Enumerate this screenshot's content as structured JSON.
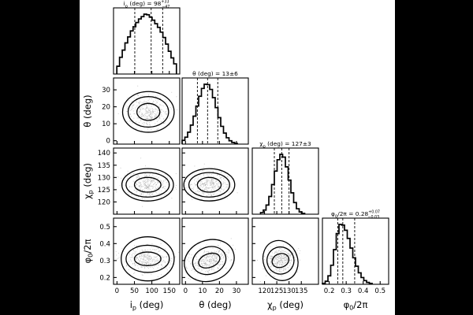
{
  "chart_data": {
    "type": "corner",
    "parameters": [
      {
        "key": "ip",
        "title": "i_p (deg) = 98 +33 −47",
        "title_parts": [
          "i",
          "p",
          " (deg) = 98",
          "+33",
          "−47"
        ],
        "xlabel_parts": [
          "i",
          "p",
          " (deg)"
        ],
        "ylabel_parts": [],
        "range": [
          -10,
          180
        ],
        "ticks": [
          0,
          50,
          100,
          150
        ],
        "median": 98,
        "lo": 51,
        "hi": 131,
        "hist_mode": "flat",
        "hist_values": [
          0.13,
          0.28,
          0.4,
          0.52,
          0.62,
          0.72,
          0.79,
          0.86,
          0.92,
          0.96,
          1.0,
          0.99,
          0.95,
          0.9,
          0.84,
          0.78,
          0.7,
          0.61,
          0.5,
          0.38,
          0.27,
          0.17
        ]
      },
      {
        "key": "theta",
        "title": "θ (deg) = 13±6",
        "title_parts": [
          "θ",
          "",
          " (deg) = 13±6",
          "",
          ""
        ],
        "xlabel_parts": [
          "θ",
          "",
          " (deg)"
        ],
        "ylabel_parts": [
          "θ",
          "",
          " (deg)"
        ],
        "range": [
          -2,
          37
        ],
        "ticks": [
          0,
          10,
          20,
          30
        ],
        "median": 13,
        "lo": 7,
        "hi": 19,
        "hist_mode": "gauss",
        "hist_mean": 12.5,
        "hist_sd": 5.8
      },
      {
        "key": "chip",
        "title": "χ_p (deg) = 127±3",
        "title_parts": [
          "χ",
          "p",
          " (deg) = 127±3",
          "",
          ""
        ],
        "xlabel_parts": [
          "χ",
          "p",
          " (deg)"
        ],
        "ylabel_parts": [
          "χ",
          "p",
          " (deg)"
        ],
        "range": [
          115,
          142
        ],
        "ticks": [
          120,
          125,
          130,
          135
        ],
        "yticks": [
          120,
          125,
          130,
          135,
          140
        ],
        "median": 127,
        "lo": 124,
        "hi": 130,
        "hist_mode": "gauss",
        "hist_mean": 127,
        "hist_sd": 3
      },
      {
        "key": "phi0",
        "title": "φ0/2π = 0.28 +0.07 −0.03",
        "title_parts": [
          "φ",
          "0",
          "/2π = 0.28",
          "+0.07",
          "−0.03"
        ],
        "xlabel_parts": [
          "φ",
          "0",
          "/2π"
        ],
        "ylabel_parts": [
          "φ",
          "0",
          "/2π"
        ],
        "range": [
          0.16,
          0.55
        ],
        "ticks": [
          0.2,
          0.3,
          0.4,
          0.5
        ],
        "median": 0.28,
        "lo": 0.25,
        "hi": 0.35,
        "hist_mode": "skew",
        "hist_mode_value": 0.27,
        "hist_sd_left": 0.035,
        "hist_sd_right": 0.06
      }
    ],
    "pairs": [
      {
        "x": "ip",
        "y": "theta",
        "center": [
          90,
          17
        ],
        "spread": [
          [
            33,
            5
          ],
          [
            58,
            9
          ],
          [
            74,
            12
          ]
        ],
        "tilt_deg": 0
      },
      {
        "x": "ip",
        "y": "chip",
        "center": [
          88,
          127
        ],
        "spread": [
          [
            38,
            3
          ],
          [
            62,
            5
          ],
          [
            74,
            6.6
          ]
        ],
        "tilt_deg": 0
      },
      {
        "x": "theta",
        "y": "chip",
        "center": [
          14,
          127
        ],
        "spread": [
          [
            7,
            3
          ],
          [
            12,
            5
          ],
          [
            15,
            6.6
          ]
        ],
        "tilt_deg": 0
      },
      {
        "x": "ip",
        "y": "phi0",
        "center": [
          88,
          0.31
        ],
        "spread": [
          [
            38,
            0.04
          ],
          [
            62,
            0.08
          ],
          [
            76,
            0.13
          ]
        ],
        "tilt_deg": 0
      },
      {
        "x": "theta",
        "y": "phi0",
        "center": [
          14,
          0.3
        ],
        "spread": [
          [
            6.5,
            0.04
          ],
          [
            10,
            0.08
          ],
          [
            15,
            0.12
          ]
        ],
        "tilt_deg": -20
      },
      {
        "x": "chip",
        "y": "phi0",
        "center": [
          126.5,
          0.3
        ],
        "spread": [
          [
            3.5,
            0.04
          ],
          [
            5.5,
            0.08
          ],
          [
            7,
            0.12
          ]
        ],
        "tilt_deg": -20
      }
    ]
  }
}
